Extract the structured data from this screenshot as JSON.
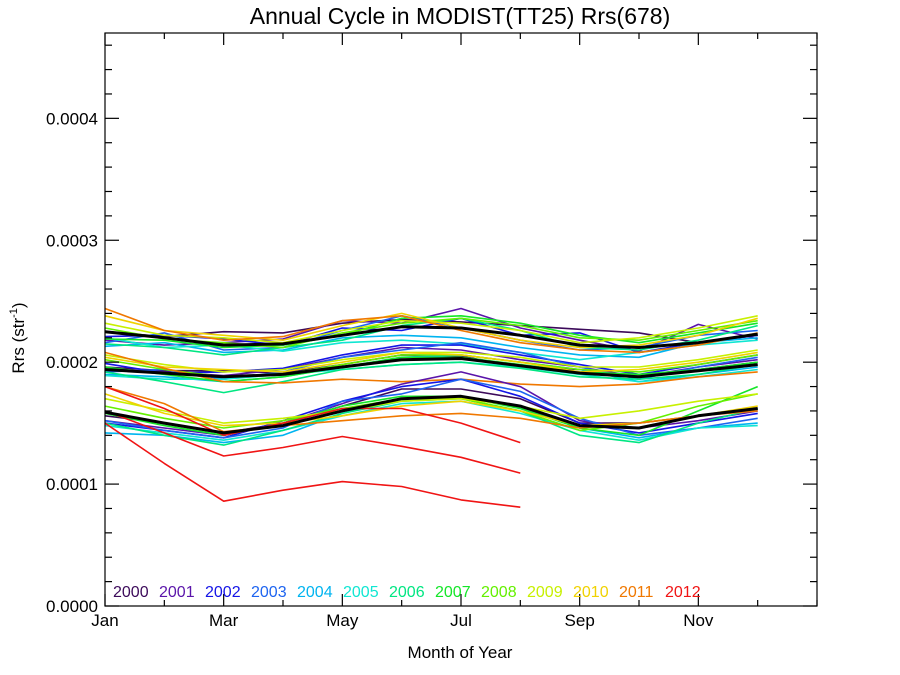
{
  "chart_data": {
    "type": "line",
    "title": "Annual Cycle in MODIST(TT25) Rrs(678)",
    "xlabel": "Month of Year",
    "ylabel": "Rrs (str",
    "ylabel_sup": "-1",
    "ylabel_end": ")",
    "xlim": [
      1,
      13
    ],
    "ylim": [
      0,
      0.00047
    ],
    "x_ticks": [
      {
        "value": 1,
        "label": "Jan"
      },
      {
        "value": 3,
        "label": "Mar"
      },
      {
        "value": 5,
        "label": "May"
      },
      {
        "value": 7,
        "label": "Jul"
      },
      {
        "value": 9,
        "label": "Sep"
      },
      {
        "value": 11,
        "label": "Nov"
      }
    ],
    "y_ticks": [
      {
        "value": 0,
        "label": "0.0000"
      },
      {
        "value": 0.0001,
        "label": "0.0001"
      },
      {
        "value": 0.0002,
        "label": "0.0002"
      },
      {
        "value": 0.0003,
        "label": "0.0003"
      },
      {
        "value": 0.0004,
        "label": "0.0004"
      }
    ],
    "legend_placement": "bottom-left",
    "legend_years": [
      {
        "name": "2000",
        "color": "#3c0a5a"
      },
      {
        "name": "2001",
        "color": "#5a14aa"
      },
      {
        "name": "2002",
        "color": "#1414e6"
      },
      {
        "name": "2003",
        "color": "#1e64f0"
      },
      {
        "name": "2004",
        "color": "#00b4f0"
      },
      {
        "name": "2005",
        "color": "#10e6d2"
      },
      {
        "name": "2006",
        "color": "#00e682"
      },
      {
        "name": "2007",
        "color": "#14e628"
      },
      {
        "name": "2008",
        "color": "#64f000"
      },
      {
        "name": "2009",
        "color": "#c8f000"
      },
      {
        "name": "2010",
        "color": "#f0d200"
      },
      {
        "name": "2011",
        "color": "#f07800"
      },
      {
        "name": "2012",
        "color": "#f01414"
      }
    ],
    "x_positions": [
      1,
      2,
      3,
      4,
      5,
      6,
      7,
      8,
      9,
      10,
      11,
      12
    ],
    "series": [
      {
        "color": "#3c0a5a",
        "group": "upper",
        "values": [
          0.000225,
          0.000221,
          0.000225,
          0.000224,
          0.000232,
          0.000235,
          0.000233,
          0.00023,
          0.000227,
          0.000224,
          0.000216,
          0.000222
        ]
      },
      {
        "color": "#5a14aa",
        "group": "upper",
        "values": [
          0.000218,
          0.000214,
          0.000216,
          0.000219,
          0.000234,
          0.000232,
          0.000244,
          0.000228,
          0.000218,
          0.000209,
          0.000231,
          0.000219
        ]
      },
      {
        "color": "#1414e6",
        "group": "upper",
        "values": [
          0.000221,
          0.000222,
          0.000219,
          0.000214,
          0.000228,
          0.000226,
          0.000236,
          0.000222,
          0.000224,
          0.000208,
          0.000216,
          0.000222
        ]
      },
      {
        "color": "#1e64f0",
        "group": "upper",
        "values": [
          0.000216,
          0.000224,
          0.00021,
          0.000212,
          0.000226,
          0.000238,
          0.000228,
          0.000218,
          0.00021,
          0.000212,
          0.000222,
          0.000226
        ]
      },
      {
        "color": "#00b4f0",
        "group": "upper",
        "values": [
          0.000213,
          0.000216,
          0.000208,
          0.00021,
          0.00022,
          0.000222,
          0.00022,
          0.000212,
          0.000206,
          0.000204,
          0.000216,
          0.00022
        ]
      },
      {
        "color": "#10e6d2",
        "group": "upper",
        "values": [
          0.00022,
          0.000212,
          0.000214,
          0.000209,
          0.000216,
          0.000218,
          0.000215,
          0.000208,
          0.000202,
          0.000208,
          0.000214,
          0.000218
        ]
      },
      {
        "color": "#00e682",
        "group": "upper",
        "values": [
          0.000215,
          0.000212,
          0.000206,
          0.000212,
          0.000218,
          0.00023,
          0.000236,
          0.000226,
          0.000212,
          0.00021,
          0.000218,
          0.00023
        ]
      },
      {
        "color": "#14e628",
        "group": "upper",
        "values": [
          0.000219,
          0.000218,
          0.000212,
          0.000214,
          0.000222,
          0.000236,
          0.000238,
          0.000232,
          0.000222,
          0.000216,
          0.000224,
          0.000232
        ]
      },
      {
        "color": "#64f000",
        "group": "upper",
        "values": [
          0.000228,
          0.000219,
          0.000216,
          0.000212,
          0.000224,
          0.000232,
          0.000236,
          0.00023,
          0.00022,
          0.000218,
          0.000226,
          0.000234
        ]
      },
      {
        "color": "#c8f000",
        "group": "upper",
        "values": [
          0.000232,
          0.000222,
          0.00022,
          0.000216,
          0.000226,
          0.000234,
          0.000232,
          0.000226,
          0.000216,
          0.00022,
          0.000228,
          0.000238
        ]
      },
      {
        "color": "#f0d200",
        "group": "upper",
        "values": [
          0.000238,
          0.000226,
          0.000222,
          0.000218,
          0.00023,
          0.00024,
          0.000228,
          0.000218,
          0.000212,
          0.000214,
          0.000222,
          0.000236
        ]
      },
      {
        "color": "#f07800",
        "group": "upper",
        "values": [
          0.000244,
          0.000226,
          0.000218,
          0.000221,
          0.000234,
          0.000238,
          0.000226,
          0.000216,
          0.00021,
          0.000208,
          0.000214,
          0.000224
        ]
      },
      {
        "color": "#000000",
        "group": "upper",
        "values": [
          0.000225,
          0.00022,
          0.000214,
          0.000215,
          0.000222,
          0.000229,
          0.000228,
          0.000222,
          0.000214,
          0.000212,
          0.000216,
          0.000223
        ]
      },
      {
        "color": "#3c0a5a",
        "group": "middle",
        "values": [
          0.000196,
          0.000193,
          0.000193,
          0.000191,
          0.000198,
          0.000206,
          0.000205,
          0.000196,
          0.000194,
          0.000188,
          0.000194,
          0.0002
        ]
      },
      {
        "color": "#5a14aa",
        "group": "middle",
        "values": [
          0.000194,
          0.000192,
          0.000189,
          0.000194,
          0.000204,
          0.000212,
          0.00021,
          0.000202,
          0.000196,
          0.000188,
          0.000196,
          0.000202
        ]
      },
      {
        "color": "#1414e6",
        "group": "middle",
        "values": [
          0.000199,
          0.000191,
          0.000192,
          0.000195,
          0.000206,
          0.000214,
          0.000214,
          0.000206,
          0.000198,
          0.00019,
          0.000198,
          0.000206
        ]
      },
      {
        "color": "#1e64f0",
        "group": "middle",
        "values": [
          0.000192,
          0.000194,
          0.000186,
          0.000192,
          0.000204,
          0.00021,
          0.000216,
          0.000208,
          0.000196,
          0.000186,
          0.000196,
          0.000204
        ]
      },
      {
        "color": "#00b4f0",
        "group": "middle",
        "values": [
          0.00019,
          0.000188,
          0.000184,
          0.000188,
          0.000196,
          0.000204,
          0.000206,
          0.0002,
          0.000194,
          0.000184,
          0.00019,
          0.000196
        ]
      },
      {
        "color": "#10e6d2",
        "group": "middle",
        "values": [
          0.000189,
          0.000186,
          0.000186,
          0.00019,
          0.000194,
          0.000198,
          0.0002,
          0.000196,
          0.00019,
          0.000184,
          0.000188,
          0.000194
        ]
      },
      {
        "color": "#00e682",
        "group": "middle",
        "values": [
          0.000192,
          0.000184,
          0.000175,
          0.000184,
          0.000194,
          0.000198,
          0.0002,
          0.000195,
          0.000188,
          0.000186,
          0.00019,
          0.000198
        ]
      },
      {
        "color": "#14e628",
        "group": "middle",
        "values": [
          0.000196,
          0.00019,
          0.000184,
          0.000188,
          0.000196,
          0.000204,
          0.000204,
          0.000198,
          0.000192,
          0.00019,
          0.000194,
          0.0002
        ]
      },
      {
        "color": "#64f000",
        "group": "middle",
        "values": [
          0.000202,
          0.000194,
          0.000188,
          0.00019,
          0.000198,
          0.000206,
          0.000206,
          0.0002,
          0.000194,
          0.000192,
          0.000198,
          0.000206
        ]
      },
      {
        "color": "#c8f000",
        "group": "middle",
        "values": [
          0.000206,
          0.000198,
          0.000192,
          0.000194,
          0.000202,
          0.000208,
          0.000208,
          0.000204,
          0.000196,
          0.000196,
          0.000202,
          0.00021
        ]
      },
      {
        "color": "#f0d200",
        "group": "middle",
        "values": [
          0.000204,
          0.000196,
          0.000194,
          0.000192,
          0.0002,
          0.000208,
          0.000206,
          0.0002,
          0.000192,
          0.000194,
          0.0002,
          0.000208
        ]
      },
      {
        "color": "#f07800",
        "group": "middle",
        "values": [
          0.000208,
          0.000195,
          0.000184,
          0.000183,
          0.000186,
          0.000184,
          0.000186,
          0.000182,
          0.00018,
          0.000182,
          0.000188,
          0.000192
        ]
      },
      {
        "color": "#000000",
        "group": "middle",
        "values": [
          0.000194,
          0.000191,
          0.000188,
          0.00019,
          0.000196,
          0.000202,
          0.000203,
          0.000197,
          0.000191,
          0.000188,
          0.000193,
          0.000198
        ]
      },
      {
        "color": "#3c0a5a",
        "group": "lower",
        "values": [
          0.000156,
          0.00015,
          0.000142,
          0.00015,
          0.000164,
          0.000178,
          0.000178,
          0.00017,
          0.00015,
          0.00015,
          0.000156,
          0.000162
        ]
      },
      {
        "color": "#5a14aa",
        "group": "lower",
        "values": [
          0.000152,
          0.000146,
          0.00014,
          0.00015,
          0.000166,
          0.000182,
          0.000192,
          0.00018,
          0.000152,
          0.000146,
          0.000152,
          0.00016
        ]
      },
      {
        "color": "#1414e6",
        "group": "lower",
        "values": [
          0.00015,
          0.000144,
          0.000138,
          0.000152,
          0.000168,
          0.00018,
          0.000186,
          0.000172,
          0.00015,
          0.000142,
          0.00015,
          0.000158
        ]
      },
      {
        "color": "#1e64f0",
        "group": "lower",
        "values": [
          0.000152,
          0.000144,
          0.000138,
          0.000146,
          0.000168,
          0.000174,
          0.000186,
          0.000176,
          0.000154,
          0.00014,
          0.000146,
          0.000154
        ]
      },
      {
        "color": "#00b4f0",
        "group": "lower",
        "values": [
          0.000142,
          0.00014,
          0.000134,
          0.00014,
          0.000158,
          0.00017,
          0.000172,
          0.000162,
          0.000146,
          0.000138,
          0.000146,
          0.00015
        ]
      },
      {
        "color": "#10e6d2",
        "group": "lower",
        "values": [
          0.000148,
          0.000142,
          0.000136,
          0.000144,
          0.000156,
          0.000166,
          0.000168,
          0.000158,
          0.000144,
          0.000136,
          0.000146,
          0.000148
        ]
      },
      {
        "color": "#00e682",
        "group": "lower",
        "values": [
          0.00015,
          0.00014,
          0.000132,
          0.000144,
          0.000158,
          0.000168,
          0.00017,
          0.00016,
          0.00014,
          0.000134,
          0.00015,
          0.000162
        ]
      },
      {
        "color": "#14e628",
        "group": "lower",
        "values": [
          0.000158,
          0.000148,
          0.00014,
          0.00015,
          0.000164,
          0.000172,
          0.000172,
          0.000162,
          0.000146,
          0.00014,
          0.00016,
          0.00018
        ]
      },
      {
        "color": "#64f000",
        "group": "lower",
        "values": [
          0.000164,
          0.000154,
          0.000146,
          0.000152,
          0.000162,
          0.00017,
          0.00017,
          0.00016,
          0.000144,
          0.00015,
          0.000164,
          0.000174
        ]
      },
      {
        "color": "#c8f000",
        "group": "lower",
        "values": [
          0.00017,
          0.00016,
          0.00015,
          0.000154,
          0.00016,
          0.000168,
          0.00017,
          0.000164,
          0.000154,
          0.00016,
          0.000168,
          0.000174
        ]
      },
      {
        "color": "#f0d200",
        "group": "lower",
        "values": [
          0.000174,
          0.000158,
          0.000148,
          0.00015,
          0.000156,
          0.000164,
          0.000168,
          0.00016,
          0.000148,
          0.00015,
          0.000156,
          0.000164
        ]
      },
      {
        "color": "#f07800",
        "group": "lower",
        "values": [
          0.00018,
          0.000166,
          0.000143,
          0.000148,
          0.000152,
          0.000156,
          0.000158,
          0.000154,
          0.000146,
          0.00015,
          0.000156,
          0.00016
        ]
      },
      {
        "color": "#f01414",
        "group": "2012-a",
        "values": [
          0.00018,
          0.000162,
          0.00014,
          0.00015,
          0.000162,
          0.000162,
          0.00015,
          0.000134
        ]
      },
      {
        "color": "#f01414",
        "group": "2012-b",
        "values": [
          0.00016,
          0.000142,
          0.000123,
          0.00013,
          0.000139,
          0.000131,
          0.000122,
          0.000109
        ]
      },
      {
        "color": "#f01414",
        "group": "2012-c",
        "values": [
          0.00015,
          0.000117,
          8.6e-05,
          9.5e-05,
          0.000102,
          9.8e-05,
          8.7e-05,
          8.1e-05
        ]
      },
      {
        "color": "#000000",
        "group": "lower",
        "values": [
          0.000159,
          0.00015,
          0.000142,
          0.000148,
          0.00016,
          0.00017,
          0.000172,
          0.000164,
          0.000148,
          0.000146,
          0.000156,
          0.000162
        ]
      }
    ]
  }
}
